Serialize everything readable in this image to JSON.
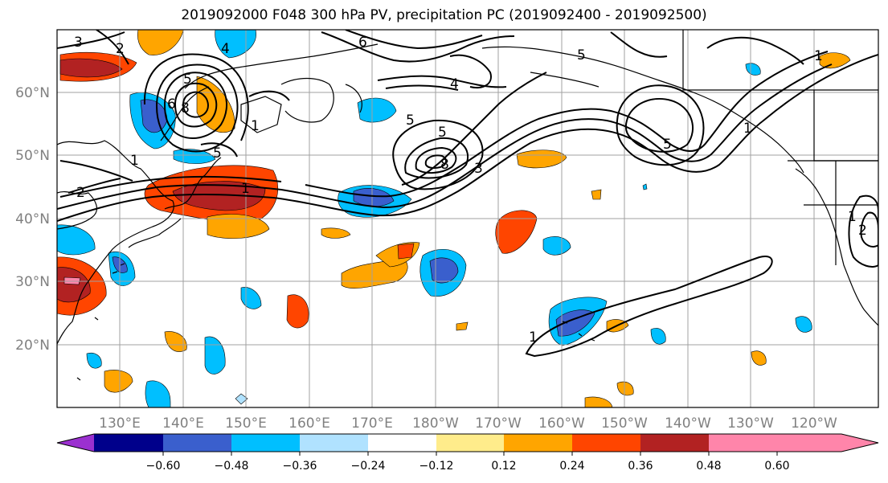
{
  "title": "2019092000 F048 300 hPa PV, precipitation PC (2019092400 - 2019092500)",
  "map": {
    "lat_labels": [
      "60°N",
      "50°N",
      "40°N",
      "30°N",
      "20°N"
    ],
    "lon_labels": [
      "130°E",
      "140°E",
      "150°E",
      "160°E",
      "170°E",
      "180°W",
      "170°W",
      "160°W",
      "150°W",
      "140°W",
      "130°W",
      "120°W"
    ],
    "contour_labels": [
      "3",
      "2",
      "4",
      "5",
      "1",
      "6",
      "5",
      "8",
      "1",
      "5",
      "3",
      "6",
      "1",
      "2",
      "8",
      "5",
      "4",
      "5",
      "5",
      "1",
      "1",
      "1",
      "1",
      "2"
    ]
  },
  "colorbar": {
    "colors": [
      "#9b30d0",
      "#00008b",
      "#3a5fcd",
      "#00bfff",
      "#b0e2ff",
      "#ffffff",
      "#ffec8b",
      "#ffa500",
      "#ff4500",
      "#b22222",
      "#ff85aa"
    ],
    "tick_labels": [
      "−0.60",
      "−0.48",
      "−0.36",
      "−0.24",
      "−0.12",
      "0.12",
      "0.24",
      "0.36",
      "0.48",
      "0.60"
    ]
  },
  "colors": {
    "grid": "#a0a0a0",
    "contour": "#000000",
    "axis_text": "#808080"
  }
}
